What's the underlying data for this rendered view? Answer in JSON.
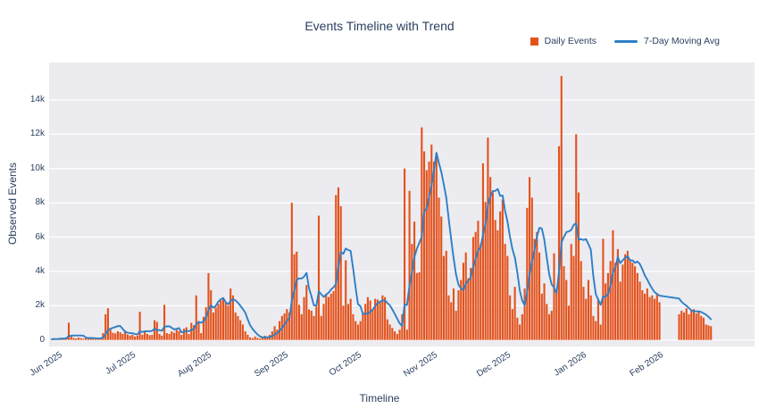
{
  "legend": [
    {
      "label": "Daily Events",
      "type": "bar",
      "color": "#E4521B"
    },
    {
      "label": "7-Day Moving Avg",
      "type": "line",
      "color": "#2E7FC6"
    }
  ],
  "chart_data": {
    "type": "bar",
    "title": "Events Timeline with Trend",
    "xlabel": "Timeline",
    "ylabel": "Observed Events",
    "grid": true,
    "legend_position": "top-right",
    "x_start": "2025-05-29",
    "x_unit": "day",
    "ylim": [
      0,
      16200
    ],
    "colors": {
      "bar": "#E4521B",
      "line": "#2E7FC6",
      "plot_bg": "#EBEBF0",
      "grid": "#FFFFFF",
      "text": "#2a3f5f"
    },
    "y_ticks": [
      {
        "label": "0",
        "value": 0
      },
      {
        "label": "2k",
        "value": 2000
      },
      {
        "label": "4k",
        "value": 4000
      },
      {
        "label": "6k",
        "value": 6000
      },
      {
        "label": "8k",
        "value": 8000
      },
      {
        "label": "10k",
        "value": 10000
      },
      {
        "label": "12k",
        "value": 12000
      },
      {
        "label": "14k",
        "value": 14000
      }
    ],
    "x_ticks": [
      {
        "label": "Jun 2025",
        "day_index": 3
      },
      {
        "label": "Jul 2025",
        "day_index": 33
      },
      {
        "label": "Aug 2025",
        "day_index": 64
      },
      {
        "label": "Sep 2025",
        "day_index": 95
      },
      {
        "label": "Oct 2025",
        "day_index": 125
      },
      {
        "label": "Nov 2025",
        "day_index": 156
      },
      {
        "label": "Dec 2025",
        "day_index": 186
      },
      {
        "label": "Jan 2026",
        "day_index": 217
      },
      {
        "label": "Feb 2026",
        "day_index": 248
      }
    ],
    "series": [
      {
        "name": "Daily Events",
        "type": "bar",
        "color": "#E4521B",
        "values": [
          40,
          70,
          50,
          90,
          130,
          110,
          160,
          1000,
          210,
          120,
          90,
          140,
          110,
          70,
          180,
          130,
          90,
          60,
          50,
          80,
          120,
          400,
          1500,
          1850,
          600,
          420,
          380,
          500,
          450,
          350,
          560,
          320,
          260,
          300,
          200,
          250,
          1650,
          300,
          550,
          350,
          280,
          300,
          1150,
          1050,
          350,
          250,
          2050,
          400,
          350,
          500,
          420,
          600,
          520,
          300,
          660,
          740,
          350,
          1000,
          860,
          2600,
          1100,
          400,
          1350,
          1900,
          3900,
          2900,
          1600,
          1900,
          2100,
          2300,
          2450,
          2200,
          2000,
          3000,
          2600,
          1600,
          1400,
          1150,
          900,
          500,
          300,
          150,
          100,
          200,
          120,
          80,
          150,
          250,
          180,
          300,
          500,
          800,
          600,
          1100,
          1400,
          1550,
          1800,
          1600,
          8000,
          5000,
          5150,
          2050,
          1500,
          2500,
          3200,
          1780,
          1700,
          1400,
          1950,
          7250,
          1400,
          2100,
          2700,
          2500,
          2700,
          2850,
          8450,
          8900,
          7800,
          2000,
          4650,
          2100,
          2400,
          1500,
          1100,
          900,
          1100,
          1600,
          2100,
          2500,
          2300,
          1800,
          2400,
          2350,
          2200,
          2600,
          2500,
          1200,
          900,
          700,
          500,
          350,
          600,
          1500,
          10000,
          600,
          8700,
          5600,
          6900,
          3900,
          3950,
          12400,
          11000,
          9900,
          10400,
          11400,
          10400,
          10900,
          8300,
          7200,
          4900,
          5200,
          2600,
          2200,
          3000,
          1700,
          2900,
          3500,
          4500,
          5100,
          3600,
          4200,
          6000,
          6300,
          6950,
          5600,
          10300,
          8050,
          11800,
          9500,
          8600,
          7000,
          6400,
          7500,
          8200,
          5600,
          4900,
          2600,
          1800,
          3100,
          1300,
          900,
          1500,
          3000,
          7700,
          9500,
          8300,
          5900,
          6300,
          5100,
          2700,
          3300,
          2100,
          1500,
          1700,
          5050,
          2800,
          11300,
          15400,
          4300,
          3500,
          2000,
          5600,
          4900,
          12000,
          8600,
          4600,
          3100,
          2400,
          3500,
          2600,
          1400,
          1100,
          2400,
          900,
          5900,
          3300,
          3900,
          4600,
          6400,
          4500,
          5300,
          3400,
          4400,
          5000,
          5200,
          4700,
          4500,
          4300,
          3900,
          3400,
          2900,
          2700,
          3000,
          2500,
          2600,
          2400,
          2700,
          2200,
          null,
          null,
          null,
          null,
          null,
          null,
          null,
          1500,
          1700,
          1600,
          1850,
          1500,
          1700,
          1800,
          1550,
          1650,
          1400,
          1300,
          900,
          850,
          800
        ]
      },
      {
        "name": "7-Day Moving Avg",
        "type": "line",
        "color": "#2E7FC6",
        "derived": "7-day moving average of Daily Events (computed over observed days, gaps skipped)"
      }
    ]
  }
}
